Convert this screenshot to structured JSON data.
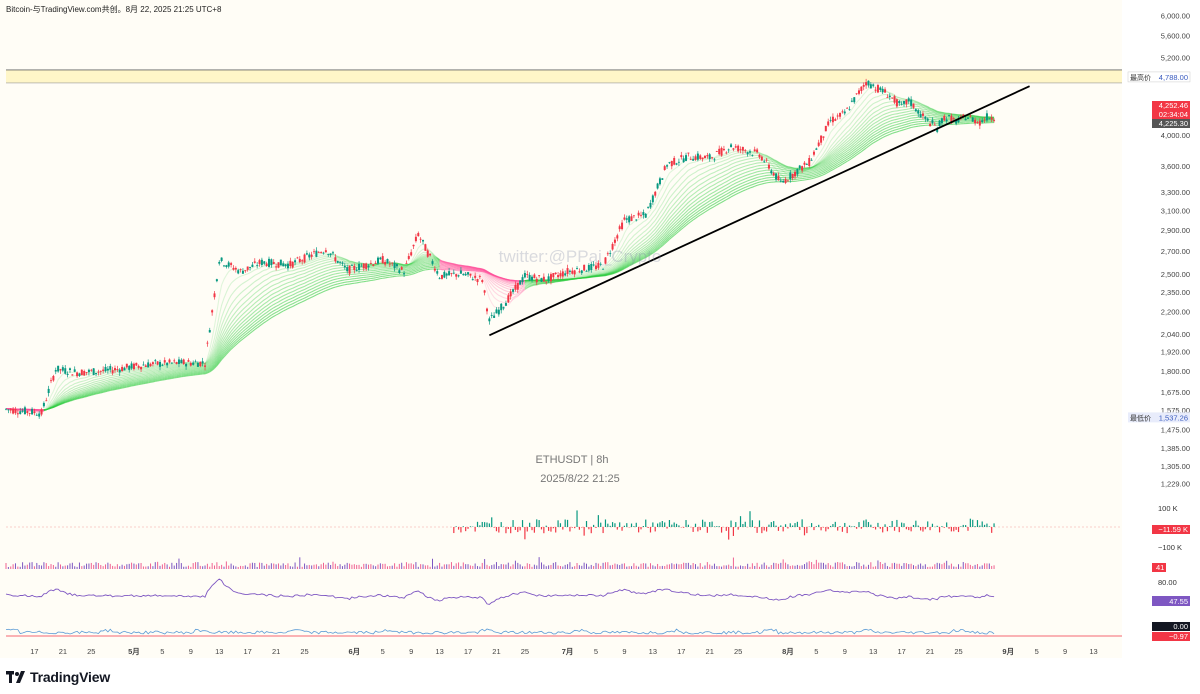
{
  "header": {
    "title": "Bitcoin-与TradingView.com共创。8月 22, 2025 21:25 UTC+8"
  },
  "footer": {
    "brand": "TradingView"
  },
  "watermark": "twitter:@PPai_Crypto",
  "chart_data": {
    "type": "candlestick",
    "symbol_title": "ETHUSDT | 8h",
    "symbol_date": "2025/8/22 21:25",
    "scale": "log",
    "ylim": [
      1170,
      6150
    ],
    "price_ticks": [
      "6,000.00",
      "5,600.00",
      "5,200.00",
      "4,788.00",
      "4,252.46",
      "4,225.30",
      "4,000.00",
      "3,600.00",
      "3,300.00",
      "3,100.00",
      "2,900.00",
      "2,700.00",
      "2,500.00",
      "2,350.00",
      "2,200.00",
      "2,040.00",
      "1,920.00",
      "1,800.00",
      "1,675.00",
      "1,575.00",
      "1,537.26",
      "1,475.00",
      "1,385.00",
      "1,305.00",
      "1,229.00"
    ],
    "price_tick_values": [
      6000,
      5600,
      5200,
      4000,
      3600,
      3300,
      3100,
      2900,
      2700,
      2500,
      2350,
      2200,
      2040,
      1920,
      1800,
      1675,
      1575,
      1475,
      1385,
      1305,
      1229
    ],
    "high_line": {
      "label": "最高价",
      "value": 4788.0,
      "text": "4,788.00"
    },
    "low_line": {
      "label": "最低价",
      "value": 1537.26,
      "text": "1,537.26"
    },
    "current_price": {
      "price": "4,252.46",
      "countdown": "02:34:04",
      "prev": "4,225.30"
    },
    "x_labels": [
      "17",
      "21",
      "25",
      "5月",
      "5",
      "9",
      "13",
      "17",
      "21",
      "25",
      "6月",
      "5",
      "9",
      "13",
      "17",
      "21",
      "25",
      "7月",
      "5",
      "9",
      "13",
      "17",
      "21",
      "25",
      "8月",
      "5",
      "9",
      "13",
      "17",
      "21",
      "25",
      "9月",
      "5",
      "9",
      "13"
    ],
    "x_label_days": [
      -14,
      -10,
      -6,
      0,
      4,
      8,
      12,
      16,
      20,
      24,
      31,
      35,
      39,
      43,
      47,
      51,
      55,
      61,
      65,
      69,
      73,
      77,
      81,
      85,
      92,
      96,
      100,
      104,
      108,
      112,
      116,
      123,
      127,
      131,
      135
    ],
    "x_start_day": -18,
    "x_end_day": 139,
    "path_days": [
      -18,
      -13,
      -11,
      -8,
      -4,
      2,
      7,
      10,
      12,
      15,
      18,
      22,
      27,
      30,
      35,
      38,
      40,
      43,
      46,
      49,
      50,
      52,
      55,
      58,
      61,
      63,
      66,
      69,
      72,
      75,
      78,
      81,
      84,
      88,
      91,
      95,
      98,
      100,
      103,
      106,
      108,
      109,
      111,
      113,
      114,
      115,
      116,
      117,
      119,
      120,
      121
    ],
    "path_prices": [
      1580,
      1560,
      1810,
      1790,
      1800,
      1840,
      1850,
      1850,
      2620,
      2520,
      2600,
      2580,
      2720,
      2530,
      2620,
      2520,
      2860,
      2480,
      2500,
      2450,
      2130,
      2250,
      2480,
      2450,
      2520,
      2540,
      2570,
      3000,
      3050,
      3620,
      3720,
      3700,
      3850,
      3750,
      3400,
      3650,
      4200,
      4300,
      4788,
      4600,
      4400,
      4500,
      4250,
      4100,
      4250,
      4220,
      4180,
      4260,
      4180,
      4250,
      4252
    ],
    "trendline": {
      "start_day": 50,
      "start_price": 2030,
      "end_day": 126,
      "end_price": 4720
    },
    "delta_indicator": {
      "upper": "100 K",
      "lower": "−100 K",
      "last": "−11.59 K",
      "start_day": 45
    },
    "rsi": {
      "level": "80.00",
      "last": "47.55"
    },
    "histo_label": "41",
    "osc": {
      "zero": "0.00",
      "last": "−0.97"
    }
  },
  "colors": {
    "up": "#089981",
    "down": "#f23645",
    "ribbon_up": "#2ecc40",
    "ribbon_down": "#ff4f9a",
    "rsi": "#7e57c2",
    "osc": "#5b9bd5"
  }
}
